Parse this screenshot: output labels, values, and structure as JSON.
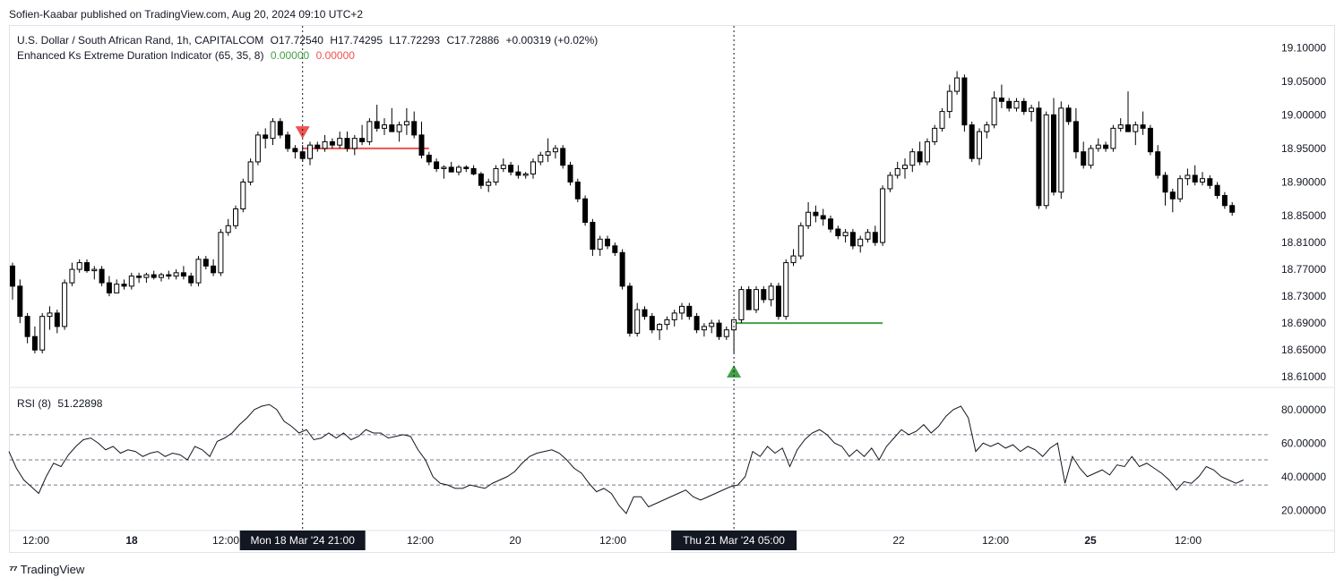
{
  "publisher_line": "Sofien-Kaabar published on TradingView.com, Aug 20, 2024 09:10 UTC+2",
  "footer_brand": "TradingView",
  "colors": {
    "up": "#ffffff",
    "down": "#000000",
    "bearish_signal": "#ef5350",
    "bullish_signal": "#43a047",
    "grid": "#f0f3fa"
  },
  "price_legend": {
    "symbol_line": "U.S. Dollar / South African Rand, 1h, CAPITALCOM",
    "open": "O17.72540",
    "high": "H17.74295",
    "low": "L17.72293",
    "close": "C17.72886",
    "change": "+0.00319 (+0.02%)"
  },
  "indicator_legend": {
    "name": "Enhanced Ks Extreme Duration Indicator (65, 35, 8)",
    "value_1": "0.00000",
    "value_2": "0.00000"
  },
  "rsi_legend": {
    "name": "RSI (8)",
    "value": "51.22898"
  },
  "cursor_labels": [
    "Mon 18 Mar '24   21:00",
    "Thu 21 Mar '24   05:00"
  ],
  "chart_data": [
    {
      "type": "candlestick",
      "y_ticks": [
        "19.10000",
        "19.05000",
        "19.00000",
        "18.95000",
        "18.90000",
        "18.85000",
        "18.81000",
        "18.77000",
        "18.73000",
        "18.69000",
        "18.65000",
        "18.61000"
      ],
      "ylim": [
        18.605,
        19.115
      ],
      "x_ticks": [
        "12:00",
        "18",
        "12:00",
        "20",
        "12:00",
        "22",
        "12:00",
        "25",
        "12:00"
      ],
      "candles": [
        [
          18.775,
          18.78,
          18.725,
          18.745
        ],
        [
          18.745,
          18.755,
          18.69,
          18.7
        ],
        [
          18.7,
          18.705,
          18.66,
          18.67
        ],
        [
          18.67,
          18.685,
          18.645,
          18.65
        ],
        [
          18.65,
          18.705,
          18.645,
          18.7
        ],
        [
          18.7,
          18.715,
          18.68,
          18.705
        ],
        [
          18.705,
          18.71,
          18.675,
          18.685
        ],
        [
          18.685,
          18.755,
          18.68,
          18.75
        ],
        [
          18.75,
          18.78,
          18.745,
          18.77
        ],
        [
          18.77,
          18.785,
          18.765,
          18.78
        ],
        [
          18.78,
          18.785,
          18.765,
          18.768
        ],
        [
          18.768,
          18.775,
          18.755,
          18.77
        ],
        [
          18.77,
          18.775,
          18.745,
          18.75
        ],
        [
          18.75,
          18.76,
          18.73,
          18.735
        ],
        [
          18.735,
          18.755,
          18.735,
          18.748
        ],
        [
          18.748,
          18.755,
          18.74,
          18.745
        ],
        [
          18.745,
          18.765,
          18.74,
          18.76
        ],
        [
          18.76,
          18.765,
          18.75,
          18.758
        ],
        [
          18.758,
          18.765,
          18.75,
          18.762
        ],
        [
          18.762,
          18.768,
          18.755,
          18.758
        ],
        [
          18.758,
          18.765,
          18.752,
          18.762
        ],
        [
          18.762,
          18.768,
          18.755,
          18.76
        ],
        [
          18.76,
          18.77,
          18.755,
          18.765
        ],
        [
          18.765,
          18.775,
          18.755,
          18.76
        ],
        [
          18.76,
          18.765,
          18.745,
          18.75
        ],
        [
          18.75,
          18.79,
          18.745,
          18.785
        ],
        [
          18.785,
          18.79,
          18.77,
          18.775
        ],
        [
          18.775,
          18.785,
          18.76,
          18.765
        ],
        [
          18.765,
          18.83,
          18.76,
          18.825
        ],
        [
          18.825,
          18.845,
          18.82,
          18.835
        ],
        [
          18.835,
          18.865,
          18.83,
          18.86
        ],
        [
          18.86,
          18.905,
          18.855,
          18.9
        ],
        [
          18.9,
          18.935,
          18.895,
          18.93
        ],
        [
          18.93,
          18.975,
          18.925,
          18.97
        ],
        [
          18.97,
          18.98,
          18.95,
          18.965
        ],
        [
          18.965,
          18.995,
          18.955,
          18.99
        ],
        [
          18.99,
          18.995,
          18.965,
          18.97
        ],
        [
          18.97,
          18.975,
          18.945,
          18.95
        ],
        [
          18.95,
          18.955,
          18.935,
          18.945
        ],
        [
          18.945,
          18.955,
          18.93,
          18.935
        ],
        [
          18.935,
          18.96,
          18.925,
          18.955
        ],
        [
          18.955,
          18.96,
          18.945,
          18.95
        ],
        [
          18.95,
          18.97,
          18.945,
          18.96
        ],
        [
          18.96,
          18.965,
          18.95,
          18.955
        ],
        [
          18.955,
          18.975,
          18.95,
          18.965
        ],
        [
          18.965,
          18.975,
          18.945,
          18.95
        ],
        [
          18.95,
          18.97,
          18.94,
          18.965
        ],
        [
          18.965,
          18.985,
          18.955,
          18.96
        ],
        [
          18.96,
          18.995,
          18.955,
          18.99
        ],
        [
          18.99,
          19.015,
          18.975,
          18.98
        ],
        [
          18.98,
          18.995,
          18.97,
          18.985
        ],
        [
          18.985,
          19.01,
          18.975,
          18.975
        ],
        [
          18.975,
          18.99,
          18.96,
          18.985
        ],
        [
          18.985,
          19.01,
          18.97,
          18.99
        ],
        [
          18.99,
          19.005,
          18.965,
          18.97
        ],
        [
          18.97,
          18.99,
          18.935,
          18.94
        ],
        [
          18.94,
          18.945,
          18.925,
          18.93
        ],
        [
          18.93,
          18.935,
          18.915,
          18.92
        ],
        [
          18.92,
          18.925,
          18.905,
          18.922
        ],
        [
          18.922,
          18.93,
          18.915,
          18.915
        ],
        [
          18.915,
          18.925,
          18.91,
          18.922
        ],
        [
          18.922,
          18.925,
          18.915,
          18.92
        ],
        [
          18.92,
          18.925,
          18.91,
          18.912
        ],
        [
          18.912,
          18.915,
          18.89,
          18.895
        ],
        [
          18.895,
          18.905,
          18.885,
          18.9
        ],
        [
          18.9,
          18.925,
          18.895,
          18.92
        ],
        [
          18.92,
          18.935,
          18.915,
          18.925
        ],
        [
          18.925,
          18.93,
          18.91,
          18.915
        ],
        [
          18.915,
          18.925,
          18.905,
          18.91
        ],
        [
          18.91,
          18.915,
          18.905,
          18.912
        ],
        [
          18.912,
          18.935,
          18.905,
          18.93
        ],
        [
          18.93,
          18.945,
          18.925,
          18.94
        ],
        [
          18.94,
          18.965,
          18.93,
          18.945
        ],
        [
          18.945,
          18.955,
          18.935,
          18.95
        ],
        [
          18.95,
          18.955,
          18.92,
          18.925
        ],
        [
          18.925,
          18.93,
          18.895,
          18.9
        ],
        [
          18.9,
          18.905,
          18.87,
          18.875
        ],
        [
          18.875,
          18.88,
          18.835,
          18.84
        ],
        [
          18.84,
          18.845,
          18.79,
          18.8
        ],
        [
          18.8,
          18.82,
          18.79,
          18.815
        ],
        [
          18.815,
          18.82,
          18.8,
          18.805
        ],
        [
          18.805,
          18.81,
          18.79,
          18.795
        ],
        [
          18.795,
          18.8,
          18.74,
          18.745
        ],
        [
          18.745,
          18.75,
          18.67,
          18.675
        ],
        [
          18.675,
          18.72,
          18.67,
          18.71
        ],
        [
          18.71,
          18.715,
          18.695,
          18.7
        ],
        [
          18.7,
          18.705,
          18.675,
          18.68
        ],
        [
          18.68,
          18.69,
          18.665,
          18.688
        ],
        [
          18.688,
          18.7,
          18.68,
          18.695
        ],
        [
          18.695,
          18.71,
          18.685,
          18.705
        ],
        [
          18.705,
          18.72,
          18.695,
          18.715
        ],
        [
          18.715,
          18.72,
          18.695,
          18.7
        ],
        [
          18.7,
          18.705,
          18.675,
          18.68
        ],
        [
          18.68,
          18.69,
          18.67,
          18.685
        ],
        [
          18.685,
          18.695,
          18.675,
          18.69
        ],
        [
          18.69,
          18.695,
          18.665,
          18.67
        ],
        [
          18.67,
          18.685,
          18.665,
          18.68
        ],
        [
          18.68,
          18.69,
          18.645,
          18.695
        ],
        [
          18.695,
          18.745,
          18.69,
          18.74
        ],
        [
          18.74,
          18.745,
          18.71,
          18.71
        ],
        [
          18.71,
          18.745,
          18.705,
          18.74
        ],
        [
          18.74,
          18.745,
          18.72,
          18.725
        ],
        [
          18.725,
          18.75,
          18.715,
          18.745
        ],
        [
          18.745,
          18.75,
          18.695,
          18.7
        ],
        [
          18.7,
          18.785,
          18.695,
          18.78
        ],
        [
          18.78,
          18.8,
          18.775,
          18.79
        ],
        [
          18.79,
          18.84,
          18.785,
          18.835
        ],
        [
          18.835,
          18.87,
          18.83,
          18.855
        ],
        [
          18.855,
          18.865,
          18.84,
          18.85
        ],
        [
          18.85,
          18.86,
          18.835,
          18.845
        ],
        [
          18.845,
          18.85,
          18.825,
          18.83
        ],
        [
          18.83,
          18.835,
          18.815,
          18.82
        ],
        [
          18.82,
          18.83,
          18.81,
          18.825
        ],
        [
          18.825,
          18.83,
          18.8,
          18.805
        ],
        [
          18.805,
          18.82,
          18.795,
          18.815
        ],
        [
          18.815,
          18.83,
          18.81,
          18.825
        ],
        [
          18.825,
          18.835,
          18.805,
          18.81
        ],
        [
          18.81,
          18.895,
          18.805,
          18.89
        ],
        [
          18.89,
          18.915,
          18.885,
          18.91
        ],
        [
          18.91,
          18.93,
          18.905,
          18.92
        ],
        [
          18.92,
          18.935,
          18.905,
          18.925
        ],
        [
          18.925,
          18.95,
          18.915,
          18.945
        ],
        [
          18.945,
          18.96,
          18.925,
          18.93
        ],
        [
          18.93,
          18.965,
          18.925,
          18.96
        ],
        [
          18.96,
          18.985,
          18.955,
          18.98
        ],
        [
          18.98,
          19.01,
          18.975,
          19.005
        ],
        [
          19.005,
          19.045,
          18.995,
          19.035
        ],
        [
          19.035,
          19.065,
          19.03,
          19.055
        ],
        [
          19.055,
          19.06,
          18.975,
          18.985
        ],
        [
          18.985,
          18.99,
          18.93,
          18.935
        ],
        [
          18.935,
          18.98,
          18.925,
          18.975
        ],
        [
          18.975,
          18.99,
          18.965,
          18.985
        ],
        [
          18.985,
          19.035,
          18.98,
          19.025
        ],
        [
          19.025,
          19.045,
          19.01,
          19.02
        ],
        [
          19.02,
          19.025,
          19.005,
          19.01
        ],
        [
          19.01,
          19.025,
          19.005,
          19.02
        ],
        [
          19.02,
          19.025,
          19.0,
          19.005
        ],
        [
          19.005,
          19.015,
          18.99,
          19.01
        ],
        [
          19.01,
          19.02,
          18.86,
          18.865
        ],
        [
          18.865,
          19.005,
          18.86,
          19.0
        ],
        [
          19.0,
          19.025,
          18.88,
          18.885
        ],
        [
          18.885,
          19.02,
          18.875,
          19.01
        ],
        [
          19.01,
          19.015,
          18.985,
          18.99
        ],
        [
          18.99,
          19.01,
          18.935,
          18.945
        ],
        [
          18.945,
          18.96,
          18.92,
          18.925
        ],
        [
          18.925,
          18.955,
          18.92,
          18.95
        ],
        [
          18.95,
          18.965,
          18.945,
          18.955
        ],
        [
          18.955,
          18.96,
          18.945,
          18.95
        ],
        [
          18.95,
          18.985,
          18.945,
          18.98
        ],
        [
          18.98,
          18.995,
          18.975,
          18.985
        ],
        [
          18.985,
          19.035,
          18.98,
          18.975
        ],
        [
          18.975,
          18.99,
          18.955,
          18.985
        ],
        [
          18.985,
          19.005,
          18.97,
          18.98
        ],
        [
          18.98,
          18.985,
          18.94,
          18.945
        ],
        [
          18.945,
          18.955,
          18.905,
          18.91
        ],
        [
          18.91,
          18.915,
          18.865,
          18.885
        ],
        [
          18.885,
          18.89,
          18.855,
          18.875
        ],
        [
          18.875,
          18.91,
          18.87,
          18.905
        ],
        [
          18.905,
          18.92,
          18.895,
          18.91
        ],
        [
          18.91,
          18.925,
          18.895,
          18.9
        ],
        [
          18.9,
          18.915,
          18.895,
          18.905
        ],
        [
          18.905,
          18.91,
          18.89,
          18.895
        ],
        [
          18.895,
          18.9,
          18.875,
          18.88
        ],
        [
          18.88,
          18.885,
          18.86,
          18.865
        ],
        [
          18.865,
          18.87,
          18.85,
          18.855
        ]
      ],
      "bearish_signal": {
        "candle_index": 39,
        "line_level": 18.95,
        "line_end_index": 56
      },
      "bullish_signal": {
        "candle_index": 97,
        "line_level": 18.69,
        "line_end_index": 117
      },
      "cursor_candle_indices": [
        39,
        97
      ]
    },
    {
      "type": "line",
      "series_name": "RSI (8)",
      "y_ticks": [
        "80.00000",
        "60.00000",
        "40.00000",
        "20.00000"
      ],
      "ylim": [
        10,
        90
      ],
      "levels": [
        65,
        50,
        35
      ],
      "values": [
        55,
        45,
        38,
        34,
        30,
        40,
        48,
        46,
        53,
        58,
        62,
        63,
        60,
        56,
        58,
        54,
        56,
        55,
        52,
        54,
        55,
        52,
        54,
        53,
        50,
        58,
        56,
        52,
        61,
        63,
        66,
        71,
        75,
        80,
        82,
        83,
        80,
        73,
        70,
        66,
        68,
        62,
        63,
        66,
        63,
        66,
        62,
        64,
        68,
        66,
        66,
        63,
        64,
        65,
        64,
        56,
        50,
        40,
        36,
        35,
        33,
        33,
        35,
        34,
        33,
        36,
        38,
        40,
        43,
        48,
        52,
        54,
        55,
        56,
        54,
        50,
        45,
        42,
        36,
        31,
        33,
        30,
        23,
        18,
        28,
        28,
        22,
        24,
        26,
        28,
        30,
        32,
        28,
        26,
        28,
        30,
        32,
        34,
        35,
        40,
        55,
        52,
        58,
        54,
        57,
        46,
        56,
        62,
        66,
        68,
        65,
        60,
        58,
        52,
        56,
        52,
        57,
        50,
        58,
        63,
        68,
        65,
        67,
        71,
        66,
        70,
        76,
        80,
        82,
        75,
        55,
        60,
        58,
        60,
        57,
        59,
        55,
        58,
        56,
        52,
        57,
        60,
        36,
        52,
        45,
        40,
        42,
        44,
        41,
        47,
        46,
        52,
        46,
        48,
        45,
        42,
        38,
        32,
        37,
        36,
        40,
        46,
        44,
        40,
        38,
        36,
        38
      ]
    }
  ]
}
